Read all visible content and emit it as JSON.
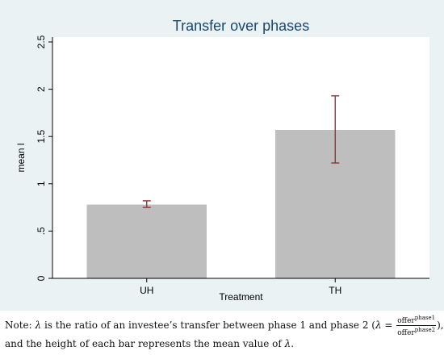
{
  "chart_data": {
    "type": "bar",
    "title": "Transfer over phases",
    "xlabel": "Treatment",
    "ylabel": "mean l",
    "categories": [
      "UH",
      "TH"
    ],
    "values": [
      0.78,
      1.57
    ],
    "error_bars": [
      {
        "low": 0.75,
        "high": 0.82
      },
      {
        "low": 1.22,
        "high": 1.93
      }
    ],
    "ylim": [
      0,
      2.5
    ],
    "yticks": [
      0,
      0.5,
      1,
      1.5,
      2,
      2.5
    ],
    "ytick_labels": [
      "0",
      ".5",
      "1",
      "1.5",
      "2",
      "2.5"
    ],
    "grid": false,
    "bar_color": "#bebebe",
    "errorbar_color": "#90353b",
    "plot_background": "#ffffff",
    "figure_background": "#eaf2f3",
    "title_color": "#1a476f"
  },
  "note": {
    "prefix": "Note: ",
    "symbol": "λ",
    "text1": " is the ratio of an investee’s transfer between phase 1 and phase 2 (",
    "eq": " = ",
    "frac_num": "offer",
    "frac_num_sup": "phase1",
    "frac_den": "offer",
    "frac_den_sup": "phase2",
    "text2": "),",
    "line2": "and the height of each bar represents the mean value of ",
    "end": "."
  }
}
